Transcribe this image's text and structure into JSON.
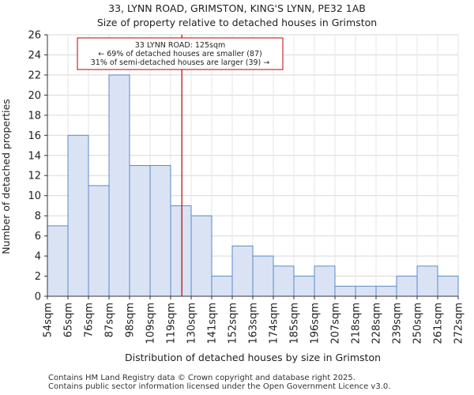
{
  "chart_data": {
    "type": "bar",
    "title": "33, LYNN ROAD, GRIMSTON, KING'S LYNN, PE32 1AB",
    "subtitle": "Size of property relative to detached houses in Grimston",
    "xlabel": "Distribution of detached houses by size in Grimston",
    "ylabel": "Number of detached properties",
    "bin_edges": [
      "54sqm",
      "65sqm",
      "76sqm",
      "87sqm",
      "98sqm",
      "109sqm",
      "119sqm",
      "130sqm",
      "141sqm",
      "152sqm",
      "163sqm",
      "174sqm",
      "185sqm",
      "196sqm",
      "207sqm",
      "218sqm",
      "228sqm",
      "239sqm",
      "250sqm",
      "261sqm",
      "272sqm"
    ],
    "values": [
      7,
      16,
      11,
      22,
      13,
      13,
      9,
      8,
      2,
      5,
      4,
      3,
      2,
      3,
      1,
      1,
      1,
      2,
      3,
      2
    ],
    "ylim": [
      0,
      26
    ],
    "yticks": [
      0,
      2,
      4,
      6,
      8,
      10,
      12,
      14,
      16,
      18,
      20,
      22,
      24,
      26
    ],
    "grid": true,
    "bar_color": "#dae3f4",
    "bar_edge_color": "#5b8ac9",
    "marker": {
      "value_sqm": 125,
      "color": "#c00000",
      "lines": [
        "33 LYNN ROAD: 125sqm",
        "← 69% of detached houses are smaller (87)",
        "31% of semi-detached houses are larger (39) →"
      ]
    }
  },
  "footer": {
    "line1": "Contains HM Land Registry data © Crown copyright and database right 2025.",
    "line2": "Contains public sector information licensed under the Open Government Licence v3.0."
  }
}
